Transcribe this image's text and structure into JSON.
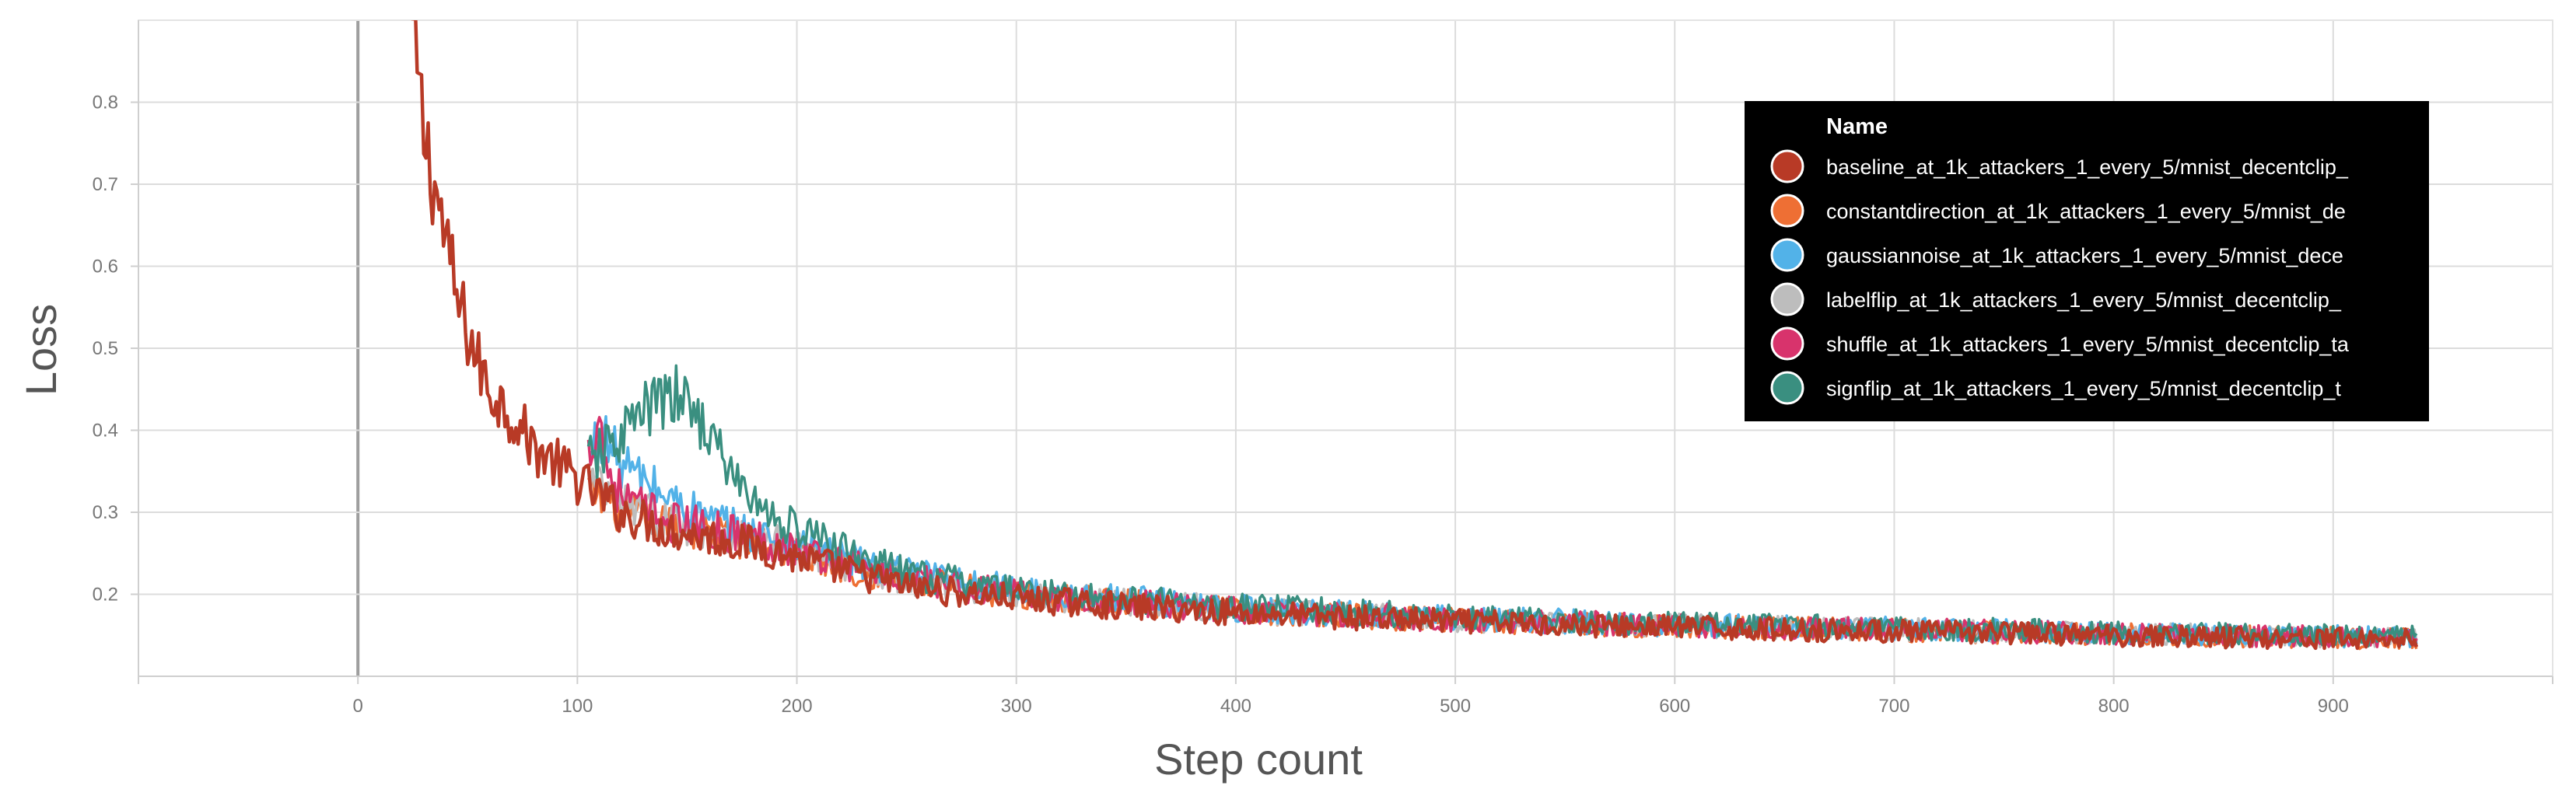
{
  "chart_data": {
    "type": "line",
    "title": "",
    "xlabel": "Step count",
    "ylabel": "Loss",
    "xlim": [
      -100,
      1000
    ],
    "ylim": [
      0.1,
      0.9
    ],
    "x_ticks": [
      0,
      100,
      200,
      300,
      400,
      500,
      600,
      700,
      800,
      900
    ],
    "y_ticks": [
      0.2,
      0.3,
      0.4,
      0.5,
      0.6,
      0.7,
      0.8
    ],
    "x_tick_labels": [
      "0",
      "100",
      "200",
      "300",
      "400",
      "500",
      "600",
      "700",
      "800",
      "900"
    ],
    "y_tick_labels": [
      "0.2",
      "0.3",
      "0.4",
      "0.5",
      "0.6",
      "0.7",
      "0.8"
    ],
    "grid": true,
    "legend": {
      "title": "Name",
      "placement": "top-right",
      "theme": "dark"
    },
    "series": [
      {
        "name": "baseline_at_1k_attackers_1_every_5/mnist_decentclip_",
        "color": "#b83a26",
        "x": [
          25,
          30,
          35,
          40,
          45,
          50,
          55,
          60,
          70,
          80,
          90,
          100,
          110,
          120,
          130,
          140,
          150,
          160,
          170,
          180,
          200,
          220,
          250,
          280,
          300,
          350,
          400,
          450,
          500,
          550,
          600,
          650,
          700,
          750,
          800,
          850,
          900,
          938
        ],
        "y": [
          0.88,
          0.76,
          0.7,
          0.63,
          0.56,
          0.52,
          0.48,
          0.45,
          0.42,
          0.38,
          0.36,
          0.34,
          0.32,
          0.3,
          0.29,
          0.28,
          0.275,
          0.27,
          0.265,
          0.26,
          0.245,
          0.23,
          0.21,
          0.2,
          0.195,
          0.185,
          0.178,
          0.172,
          0.167,
          0.163,
          0.16,
          0.157,
          0.155,
          0.153,
          0.15,
          0.148,
          0.146,
          0.145
        ]
      },
      {
        "name": "constantdirection_at_1k_attackers_1_every_5/mnist_de",
        "color": "#ee6f34",
        "x": [
          105,
          120,
          140,
          160,
          180,
          200,
          250,
          300,
          400,
          500,
          600,
          700,
          800,
          900,
          938
        ],
        "y": [
          0.33,
          0.3,
          0.285,
          0.275,
          0.265,
          0.25,
          0.215,
          0.2,
          0.18,
          0.168,
          0.161,
          0.156,
          0.151,
          0.147,
          0.146
        ]
      },
      {
        "name": "gaussiannoise_at_1k_attackers_1_every_5/mnist_dece",
        "color": "#52b2e8",
        "x": [
          105,
          110,
          115,
          120,
          130,
          140,
          150,
          160,
          180,
          200,
          250,
          300,
          400,
          500,
          600,
          700,
          800,
          900,
          938
        ],
        "y": [
          0.36,
          0.4,
          0.38,
          0.36,
          0.34,
          0.32,
          0.305,
          0.29,
          0.275,
          0.26,
          0.225,
          0.205,
          0.183,
          0.171,
          0.163,
          0.158,
          0.153,
          0.149,
          0.148
        ]
      },
      {
        "name": "labelflip_at_1k_attackers_1_every_5/mnist_decentclip_",
        "color": "#bdbdbd",
        "x": [
          105,
          120,
          140,
          160,
          180,
          200,
          250,
          300,
          400,
          500,
          600,
          700,
          800,
          900,
          938
        ],
        "y": [
          0.34,
          0.31,
          0.29,
          0.28,
          0.27,
          0.255,
          0.218,
          0.2,
          0.181,
          0.169,
          0.162,
          0.157,
          0.152,
          0.148,
          0.147
        ]
      },
      {
        "name": "shuffle_at_1k_attackers_1_every_5/mnist_decentclip_ta",
        "color": "#d8336c",
        "x": [
          105,
          110,
          113,
          118,
          125,
          140,
          160,
          180,
          200,
          250,
          300,
          400,
          500,
          600,
          700,
          800,
          900,
          938
        ],
        "y": [
          0.37,
          0.42,
          0.36,
          0.33,
          0.31,
          0.29,
          0.28,
          0.27,
          0.255,
          0.218,
          0.2,
          0.181,
          0.169,
          0.162,
          0.157,
          0.152,
          0.148,
          0.147
        ]
      },
      {
        "name": "signflip_at_1k_attackers_1_every_5/mnist_decentclip_t",
        "color": "#3a8f80",
        "x": [
          105,
          115,
          125,
          135,
          145,
          155,
          165,
          175,
          185,
          200,
          220,
          250,
          300,
          400,
          500,
          600,
          700,
          800,
          900,
          938
        ],
        "y": [
          0.36,
          0.38,
          0.41,
          0.43,
          0.44,
          0.42,
          0.37,
          0.33,
          0.3,
          0.28,
          0.255,
          0.225,
          0.205,
          0.185,
          0.172,
          0.164,
          0.159,
          0.154,
          0.15,
          0.149
        ]
      }
    ]
  }
}
